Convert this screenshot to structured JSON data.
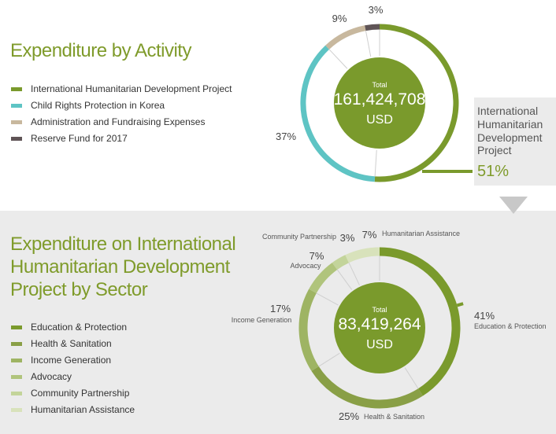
{
  "chart_data": [
    {
      "type": "pie",
      "title": "Expenditure by Activity",
      "center_label": "Total",
      "center_value": "161,424,708",
      "center_unit": "USD",
      "series": [
        {
          "name": "International Humanitarian Development Project",
          "value": 51,
          "label": "51%",
          "color": "#7a9a2c"
        },
        {
          "name": "Child Rights Protection in Korea",
          "value": 37,
          "label": "37%",
          "color": "#5ec4c4"
        },
        {
          "name": "Administration and Fundraising Expenses",
          "value": 9,
          "label": "9%",
          "color": "#c8b89e"
        },
        {
          "name": "Reserve Fund for 2017",
          "value": 3,
          "label": "3%",
          "color": "#5f5456"
        }
      ],
      "callout_text": "International Humanitarian Development Project",
      "callout_value": "51%"
    },
    {
      "type": "pie",
      "title": "Expenditure on International Humanitarian Development Project by Sector",
      "center_label": "Total",
      "center_value": "83,419,264",
      "center_unit": "USD",
      "series": [
        {
          "name": "Education & Protection",
          "short": "Education & Protection",
          "value": 41,
          "label": "41%",
          "color": "#7a9a2c"
        },
        {
          "name": "Health & Sanitation",
          "short": "Health & Sanitation",
          "value": 25,
          "label": "25%",
          "color": "#899f46"
        },
        {
          "name": "Income Generation",
          "short": "Income Generation",
          "value": 17,
          "label": "17%",
          "color": "#9eb463"
        },
        {
          "name": "Advocacy",
          "short": "Advocacy",
          "value": 7,
          "label": "7%",
          "color": "#b0c47c"
        },
        {
          "name": "Community Partnership",
          "short": "Community Partnership",
          "value": 3,
          "label": "3%",
          "color": "#c3d49a"
        },
        {
          "name": "Humanitarian Assistance",
          "short": "Humanitarian Assistance",
          "value": 7,
          "label": "7%",
          "color": "#d8e2bb"
        }
      ]
    }
  ],
  "colors": {
    "accent": "#7f9b2b",
    "center_disc": "#7a9a2c",
    "callout_panel": "#ebebeb",
    "lower_panel": "#ebebeb"
  }
}
